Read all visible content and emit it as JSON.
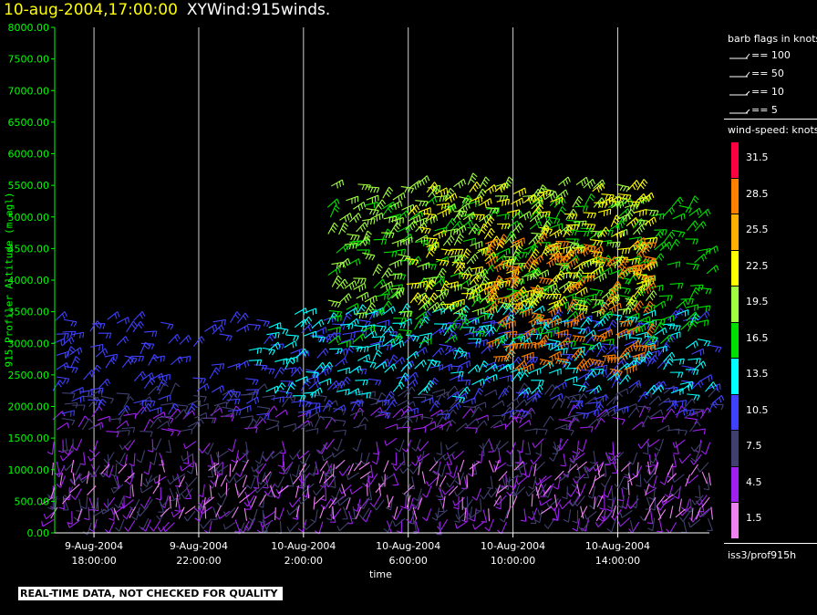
{
  "header": {
    "date_time": "10-aug-2004,17:00:00",
    "product": "XYWind:915winds."
  },
  "banner": "REAL-TIME DATA, NOT CHECKED FOR QUALITY",
  "legend": {
    "barb_title": "barb flags in knots",
    "barb_items": [
      "== 100",
      "== 50",
      "== 10",
      "== 5"
    ],
    "speed_title": "wind-speed: knots",
    "speed_bins": [
      {
        "label": "31.5",
        "color": "#ff0040"
      },
      {
        "label": "28.5",
        "color": "#ff8000"
      },
      {
        "label": "25.5",
        "color": "#ffb000"
      },
      {
        "label": "22.5",
        "color": "#ffff00"
      },
      {
        "label": "19.5",
        "color": "#a0ff40"
      },
      {
        "label": "16.5",
        "color": "#00e000"
      },
      {
        "label": "13.5",
        "color": "#00ffff"
      },
      {
        "label": "10.5",
        "color": "#4040ff"
      },
      {
        "label": "7.5",
        "color": "#404070"
      },
      {
        "label": "4.5",
        "color": "#a020f0"
      },
      {
        "label": "1.5",
        "color": "#ee82ee"
      }
    ],
    "source": "iss3/prof915h"
  },
  "chart_data": {
    "type": "scatter",
    "title": "10-aug-2004,17:00:00 XYWind:915winds.",
    "xlabel": "time",
    "ylabel": "915 Profiler Altitude (m agl)",
    "ylim": [
      0,
      8000
    ],
    "xlim": [
      "2004-08-09 16:30",
      "2004-08-10 17:30"
    ],
    "y_ticks": [
      "0.00",
      "500.00",
      "1000.00",
      "1500.00",
      "2000.00",
      "2500.00",
      "3000.00",
      "3500.00",
      "4000.00",
      "4500.00",
      "5000.00",
      "5500.00",
      "6000.00",
      "6500.00",
      "7000.00",
      "7500.00",
      "8000.00"
    ],
    "x_ticks": [
      {
        "date": "9-Aug-2004",
        "time": "18:00:00"
      },
      {
        "date": "9-Aug-2004",
        "time": "22:00:00"
      },
      {
        "date": "10-Aug-2004",
        "time": "2:00:00"
      },
      {
        "date": "10-Aug-2004",
        "time": "6:00:00"
      },
      {
        "date": "10-Aug-2004",
        "time": "10:00:00"
      },
      {
        "date": "10-Aug-2004",
        "time": "14:00:00"
      }
    ],
    "grid": "vertical lines at x ticks",
    "legend": "right",
    "series": [
      {
        "speed_bin": "4.5",
        "layer": [
          200,
          1900
        ],
        "x_range": [
          "2004-08-09 16:30",
          "2004-08-10 17:30"
        ]
      },
      {
        "speed_bin": "7.5",
        "layer": [
          200,
          2300
        ],
        "x_range": [
          "2004-08-09 16:30",
          "2004-08-10 17:30"
        ]
      },
      {
        "speed_bin": "10.5",
        "layer": [
          1900,
          3400
        ],
        "x_range": [
          "2004-08-09 16:30",
          "2004-08-10 17:30"
        ]
      },
      {
        "speed_bin": "13.5",
        "layer": [
          2200,
          3500
        ],
        "x_range": [
          "2004-08-10 00:00",
          "2004-08-10 17:30"
        ]
      },
      {
        "speed_bin": "16.5",
        "layer": [
          3000,
          5200
        ],
        "x_range": [
          "2004-08-10 03:00",
          "2004-08-10 17:30"
        ]
      },
      {
        "speed_bin": "19.5",
        "layer": [
          3500,
          5500
        ],
        "x_range": [
          "2004-08-10 03:00",
          "2004-08-10 15:00"
        ]
      },
      {
        "speed_bin": "22.5",
        "layer": [
          3600,
          5400
        ],
        "x_range": [
          "2004-08-10 06:00",
          "2004-08-10 15:00"
        ]
      },
      {
        "speed_bin": "28.5",
        "layer": [
          2600,
          4600
        ],
        "x_range": [
          "2004-08-10 09:00",
          "2004-08-10 15:00"
        ]
      },
      {
        "speed_bin": "1.5",
        "layer": [
          400,
          1200
        ],
        "x_range": [
          "2004-08-09 16:30",
          "2004-08-10 17:30"
        ]
      }
    ]
  }
}
